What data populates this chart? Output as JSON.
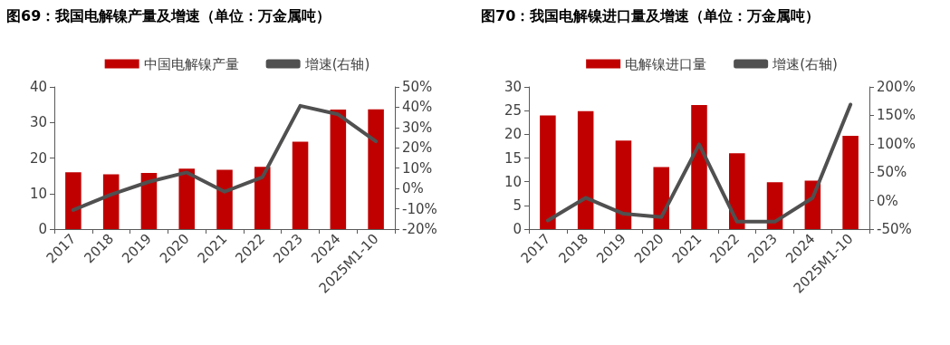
{
  "chart_data": [
    {
      "type": "bar",
      "title": "图69：我国电解镍产量及增速（单位：万金属吨）",
      "categories": [
        "2017",
        "2018",
        "2019",
        "2020",
        "2021",
        "2022",
        "2023",
        "2024",
        "2025M1-10"
      ],
      "series": [
        {
          "name": "中国电解镍产量",
          "color": "#c00000",
          "values": [
            16.0,
            15.4,
            15.8,
            17.0,
            16.7,
            17.5,
            24.6,
            33.6,
            33.7
          ]
        },
        {
          "name": "增速(右轴)",
          "type": "line",
          "axis": "y2",
          "color": "#505050",
          "values": [
            -10.6,
            -3,
            3.3,
            7.9,
            -1.6,
            5.6,
            40.7,
            36.5,
            23.2
          ]
        }
      ],
      "ylim": [
        0,
        40
      ],
      "yticks": [
        0,
        10,
        20,
        30,
        40
      ],
      "y2lim": [
        -20,
        50
      ],
      "y2ticks": [
        {
          "value": -20,
          "label": "-20%"
        },
        {
          "value": -10,
          "label": "-10%"
        },
        {
          "value": 0,
          "label": "0%"
        },
        {
          "value": 10,
          "label": "10%"
        },
        {
          "value": 20,
          "label": "20%"
        },
        {
          "value": 30,
          "label": "30%"
        },
        {
          "value": 40,
          "label": "40%"
        },
        {
          "value": 50,
          "label": "50%"
        }
      ],
      "grid": false,
      "legend": "top",
      "marker": "none",
      "line_style": "solid"
    },
    {
      "type": "bar",
      "title": "图70：我国电解镍进口量及增速（单位：万金属吨）",
      "categories": [
        "2017",
        "2018",
        "2019",
        "2020",
        "2021",
        "2022",
        "2023",
        "2024",
        "2025M1-10"
      ],
      "series": [
        {
          "name": "电解镍进口量",
          "color": "#c00000",
          "values": [
            24.0,
            24.9,
            18.7,
            13.1,
            26.2,
            16.0,
            9.9,
            10.2,
            19.7
          ]
        },
        {
          "name": "增速(右轴)",
          "type": "line",
          "axis": "y2",
          "color": "#505050",
          "values": [
            -35,
            5,
            -23,
            -29,
            99,
            -37,
            -37,
            5,
            169
          ]
        }
      ],
      "ylim": [
        0,
        30
      ],
      "yticks": [
        0,
        5,
        10,
        15,
        20,
        25,
        30
      ],
      "y2lim": [
        -50,
        200
      ],
      "y2ticks": [
        {
          "value": -50,
          "label": "-50%"
        },
        {
          "value": 0,
          "label": "0%"
        },
        {
          "value": 50,
          "label": "50%"
        },
        {
          "value": 100,
          "label": "100%"
        },
        {
          "value": 150,
          "label": "150%"
        },
        {
          "value": 200,
          "label": "200%"
        }
      ],
      "grid": false,
      "legend": "top",
      "marker": "none",
      "line_style": "solid"
    }
  ]
}
